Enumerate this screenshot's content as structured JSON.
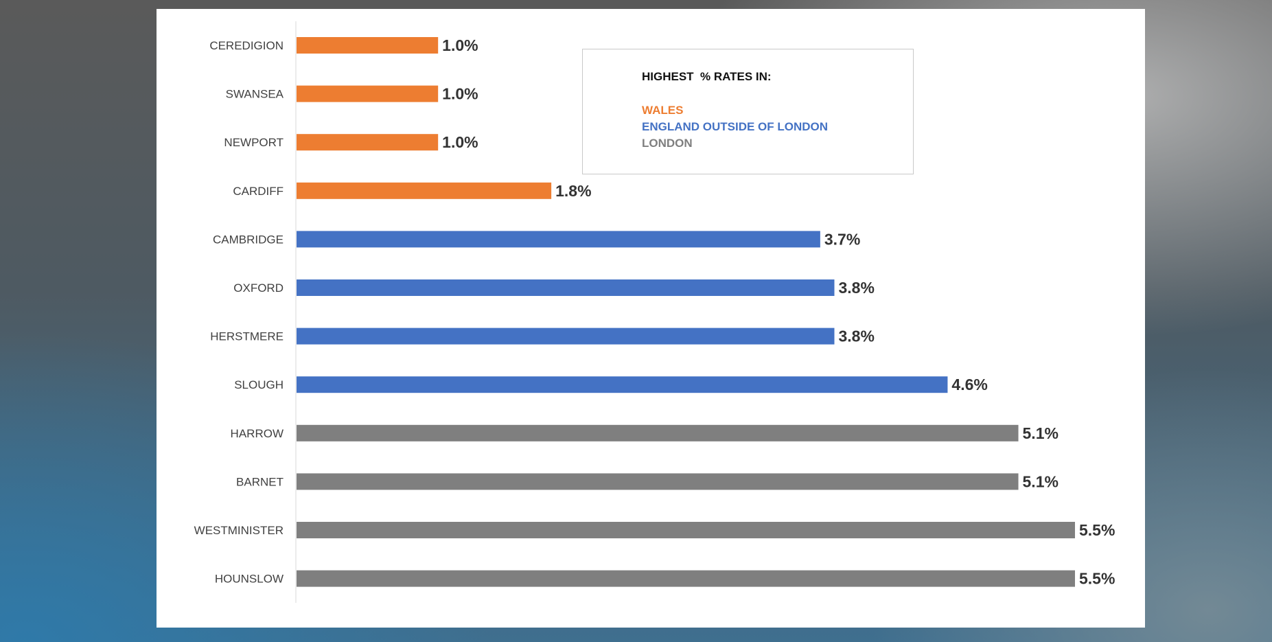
{
  "chart_data": {
    "type": "bar",
    "orientation": "horizontal",
    "categories": [
      "CEREDIGION",
      "SWANSEA",
      "NEWPORT",
      "CARDIFF",
      "CAMBRIDGE",
      "OXFORD",
      "HERSTMERE",
      "SLOUGH",
      "HARROW",
      "BARNET",
      "WESTMINISTER",
      "HOUNSLOW"
    ],
    "values": [
      1.0,
      1.0,
      1.0,
      1.8,
      3.7,
      3.8,
      3.8,
      4.6,
      5.1,
      5.1,
      5.5,
      5.5
    ],
    "value_labels": [
      "1.0%",
      "1.0%",
      "1.0%",
      "1.8%",
      "3.7%",
      "3.8%",
      "3.8%",
      "4.6%",
      "5.1%",
      "5.1%",
      "5.5%",
      "5.5%"
    ],
    "groups": [
      "WALES",
      "WALES",
      "WALES",
      "WALES",
      "ENGLAND OUTSIDE OF LONDON",
      "ENGLAND OUTSIDE OF LONDON",
      "ENGLAND OUTSIDE OF LONDON",
      "ENGLAND OUTSIDE OF LONDON",
      "LONDON",
      "LONDON",
      "LONDON",
      "LONDON"
    ],
    "xlim": [
      0,
      5.5
    ],
    "grid": false,
    "legend": {
      "title": "HIGHEST  % RATES IN:",
      "placement": "top-center",
      "entries": [
        {
          "label": "WALES",
          "color": "#ED7D31"
        },
        {
          "label": "ENGLAND OUTSIDE OF LONDON",
          "color": "#4472C4"
        },
        {
          "label": "LONDON",
          "color": "#7F7F7F"
        }
      ]
    }
  }
}
